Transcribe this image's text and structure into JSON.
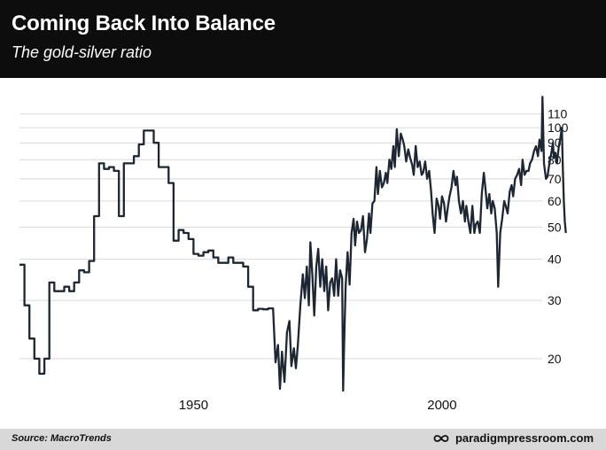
{
  "header": {
    "title": "Coming Back Into Balance",
    "subtitle": "The gold-silver ratio"
  },
  "footer": {
    "source": "Source: MacroTrends",
    "brand": "paradigmpressroom.com",
    "brand_icon": "infinity-icon"
  },
  "colors": {
    "header_bg": "#0d0d0d",
    "footer_bg": "#d8d8d8",
    "line": "#1c2733",
    "grid": "#d9d9d9"
  },
  "chart_data": {
    "type": "line",
    "title": "Coming Back Into Balance",
    "subtitle": "The gold-silver ratio",
    "xlabel": "",
    "ylabel": "",
    "x_scale": "linear",
    "y_scale": "log",
    "xlim": [
      1915,
      2023
    ],
    "ylim": [
      16,
      125
    ],
    "x_ticks": [
      1950,
      2000
    ],
    "y_ticks": [
      20,
      30,
      40,
      50,
      60,
      70,
      80,
      90,
      100,
      110
    ],
    "grid": "horizontal",
    "series": [
      {
        "values": [
          [
            1915,
            38.5
          ],
          [
            1916,
            38.5
          ],
          [
            1916,
            29
          ],
          [
            1917,
            29
          ],
          [
            1917,
            23
          ],
          [
            1918,
            23
          ],
          [
            1918,
            20
          ],
          [
            1919,
            20
          ],
          [
            1919,
            18
          ],
          [
            1920,
            18
          ],
          [
            1920,
            20
          ],
          [
            1921,
            20
          ],
          [
            1921,
            34
          ],
          [
            1922,
            34
          ],
          [
            1922,
            32
          ],
          [
            1924,
            32
          ],
          [
            1924,
            33
          ],
          [
            1925,
            33
          ],
          [
            1925,
            32
          ],
          [
            1926,
            32
          ],
          [
            1926,
            34
          ],
          [
            1927,
            34
          ],
          [
            1927,
            37
          ],
          [
            1928,
            37
          ],
          [
            1928,
            36.5
          ],
          [
            1929,
            36.5
          ],
          [
            1929,
            39.5
          ],
          [
            1930,
            39.5
          ],
          [
            1930,
            54
          ],
          [
            1931,
            54
          ],
          [
            1931,
            78
          ],
          [
            1932,
            78
          ],
          [
            1932,
            75
          ],
          [
            1933,
            75
          ],
          [
            1933,
            76
          ],
          [
            1934,
            76
          ],
          [
            1934,
            74
          ],
          [
            1935,
            74
          ],
          [
            1935,
            54
          ],
          [
            1936,
            54
          ],
          [
            1936,
            78
          ],
          [
            1937,
            78
          ],
          [
            1937,
            78
          ],
          [
            1938,
            78
          ],
          [
            1938,
            82
          ],
          [
            1939,
            82
          ],
          [
            1939,
            89
          ],
          [
            1940,
            89
          ],
          [
            1940,
            98
          ],
          [
            1942,
            98
          ],
          [
            1942,
            90
          ],
          [
            1943,
            90
          ],
          [
            1943,
            76
          ],
          [
            1945,
            76
          ],
          [
            1945,
            68
          ],
          [
            1946,
            68
          ],
          [
            1946,
            45.5
          ],
          [
            1947,
            45.5
          ],
          [
            1947,
            49
          ],
          [
            1948,
            49
          ],
          [
            1948,
            48
          ],
          [
            1949,
            48
          ],
          [
            1949,
            46
          ],
          [
            1950,
            46
          ],
          [
            1950,
            41.5
          ],
          [
            1951,
            41.5
          ],
          [
            1951,
            41
          ],
          [
            1952,
            41
          ],
          [
            1952,
            42
          ],
          [
            1953,
            42
          ],
          [
            1953,
            42.5
          ],
          [
            1954,
            42.5
          ],
          [
            1954,
            40.5
          ],
          [
            1955,
            40.5
          ],
          [
            1955,
            39
          ],
          [
            1956,
            39
          ],
          [
            1956,
            39
          ],
          [
            1957,
            39
          ],
          [
            1957,
            40.5
          ],
          [
            1958,
            40.5
          ],
          [
            1958,
            39
          ],
          [
            1960,
            39
          ],
          [
            1960,
            38
          ],
          [
            1961,
            38
          ],
          [
            1961,
            33
          ],
          [
            1962,
            33
          ],
          [
            1962,
            28
          ],
          [
            1963,
            28
          ],
          [
            1963,
            28.3
          ],
          [
            1964,
            28.3
          ],
          [
            1964,
            28.2
          ],
          [
            1965,
            28.2
          ],
          [
            1965,
            28.4
          ],
          [
            1966,
            28.4
          ],
          [
            1966.5,
            19.5
          ],
          [
            1967,
            22
          ],
          [
            1967.4,
            16.2
          ],
          [
            1967.8,
            21
          ],
          [
            1968.3,
            17
          ],
          [
            1968.8,
            24
          ],
          [
            1969.3,
            26
          ],
          [
            1969.7,
            19
          ],
          [
            1970.2,
            21.5
          ],
          [
            1970.6,
            18.7
          ],
          [
            1971,
            22
          ],
          [
            1971.5,
            29
          ],
          [
            1972,
            36
          ],
          [
            1972.4,
            30.5
          ],
          [
            1972.8,
            38
          ],
          [
            1973.2,
            29
          ],
          [
            1973.5,
            45
          ],
          [
            1973.9,
            36
          ],
          [
            1974.3,
            27
          ],
          [
            1974.7,
            38
          ],
          [
            1975.1,
            43
          ],
          [
            1975.5,
            33
          ],
          [
            1975.9,
            40
          ],
          [
            1976.3,
            32
          ],
          [
            1976.7,
            38
          ],
          [
            1977.1,
            28
          ],
          [
            1977.5,
            34
          ],
          [
            1977.9,
            35
          ],
          [
            1978.3,
            31
          ],
          [
            1978.7,
            40
          ],
          [
            1979.1,
            31
          ],
          [
            1979.5,
            37
          ],
          [
            1979.9,
            35
          ],
          [
            1980.1,
            16
          ],
          [
            1980.3,
            22
          ],
          [
            1980.6,
            33
          ],
          [
            1981,
            42
          ],
          [
            1981.4,
            33.5
          ],
          [
            1981.8,
            48
          ],
          [
            1982.2,
            53
          ],
          [
            1982.5,
            44
          ],
          [
            1982.9,
            52
          ],
          [
            1983.3,
            48
          ],
          [
            1983.7,
            49
          ],
          [
            1984.1,
            54
          ],
          [
            1984.5,
            42
          ],
          [
            1984.9,
            46
          ],
          [
            1985.3,
            55
          ],
          [
            1985.6,
            48
          ],
          [
            1986,
            59
          ],
          [
            1986.4,
            60
          ],
          [
            1986.8,
            76
          ],
          [
            1987.1,
            63
          ],
          [
            1987.5,
            74
          ],
          [
            1987.9,
            66
          ],
          [
            1988.3,
            68
          ],
          [
            1988.7,
            73
          ],
          [
            1989,
            68
          ],
          [
            1989.4,
            80
          ],
          [
            1989.8,
            75
          ],
          [
            1990.2,
            88
          ],
          [
            1990.5,
            76
          ],
          [
            1990.9,
            99
          ],
          [
            1991.3,
            82
          ],
          [
            1991.7,
            96
          ],
          [
            1992.1,
            92
          ],
          [
            1992.4,
            88
          ],
          [
            1992.8,
            79
          ],
          [
            1993.2,
            86
          ],
          [
            1993.6,
            81
          ],
          [
            1994,
            77
          ],
          [
            1994.3,
            72
          ],
          [
            1994.7,
            88
          ],
          [
            1995.1,
            76
          ],
          [
            1995.5,
            79
          ],
          [
            1995.9,
            72
          ],
          [
            1996.2,
            73
          ],
          [
            1996.6,
            79
          ],
          [
            1997,
            70
          ],
          [
            1997.4,
            74
          ],
          [
            1997.8,
            64
          ],
          [
            1998.1,
            55
          ],
          [
            1998.5,
            48
          ],
          [
            1998.9,
            61
          ],
          [
            1999.3,
            58
          ],
          [
            1999.6,
            53
          ],
          [
            2000,
            62
          ],
          [
            2000.4,
            59
          ],
          [
            2000.8,
            52
          ],
          [
            2001.2,
            58
          ],
          [
            2001.5,
            62
          ],
          [
            2001.9,
            66
          ],
          [
            2002.3,
            74
          ],
          [
            2002.7,
            67
          ],
          [
            2003,
            71
          ],
          [
            2003.4,
            60
          ],
          [
            2003.8,
            55
          ],
          [
            2004.2,
            60
          ],
          [
            2004.6,
            52
          ],
          [
            2004.9,
            58
          ],
          [
            2005.3,
            52
          ],
          [
            2005.7,
            48
          ],
          [
            2006.1,
            58
          ],
          [
            2006.5,
            48
          ],
          [
            2006.8,
            51
          ],
          [
            2007.2,
            52
          ],
          [
            2007.6,
            48
          ],
          [
            2008,
            63
          ],
          [
            2008.4,
            73
          ],
          [
            2008.7,
            66
          ],
          [
            2009.1,
            57
          ],
          [
            2009.5,
            63
          ],
          [
            2009.9,
            55
          ],
          [
            2010.2,
            60
          ],
          [
            2010.6,
            57
          ],
          [
            2011,
            48
          ],
          [
            2011.3,
            33
          ],
          [
            2011.7,
            48
          ],
          [
            2012.1,
            53
          ],
          [
            2012.5,
            60
          ],
          [
            2012.8,
            58
          ],
          [
            2013.2,
            55
          ],
          [
            2013.6,
            64
          ],
          [
            2014,
            67
          ],
          [
            2014.3,
            62
          ],
          [
            2014.7,
            70
          ],
          [
            2015.1,
            72
          ],
          [
            2015.5,
            75
          ],
          [
            2015.9,
            67
          ],
          [
            2016.2,
            80
          ],
          [
            2016.6,
            72
          ],
          [
            2017,
            74
          ],
          [
            2017.4,
            74
          ],
          [
            2017.7,
            78
          ],
          [
            2018.1,
            80
          ],
          [
            2018.5,
            85
          ],
          [
            2018.9,
            88
          ],
          [
            2019.3,
            82
          ],
          [
            2019.6,
            92
          ],
          [
            2020,
            85
          ],
          [
            2020.2,
            124
          ],
          [
            2020.5,
            78
          ],
          [
            2020.9,
            70
          ],
          [
            2021.2,
            71
          ],
          [
            2021.6,
            78
          ],
          [
            2022,
            84
          ],
          [
            2022.3,
            90
          ],
          [
            2022.5,
            81
          ],
          [
            2022.8,
            84
          ],
          [
            2023.1,
            78
          ],
          [
            2023.5,
            88
          ],
          [
            2023.8,
            93
          ],
          [
            2024.1,
            100
          ],
          [
            2024.3,
            75
          ],
          [
            2024.5,
            60
          ],
          [
            2024.7,
            52
          ],
          [
            2024.9,
            48
          ]
        ]
      }
    ]
  }
}
